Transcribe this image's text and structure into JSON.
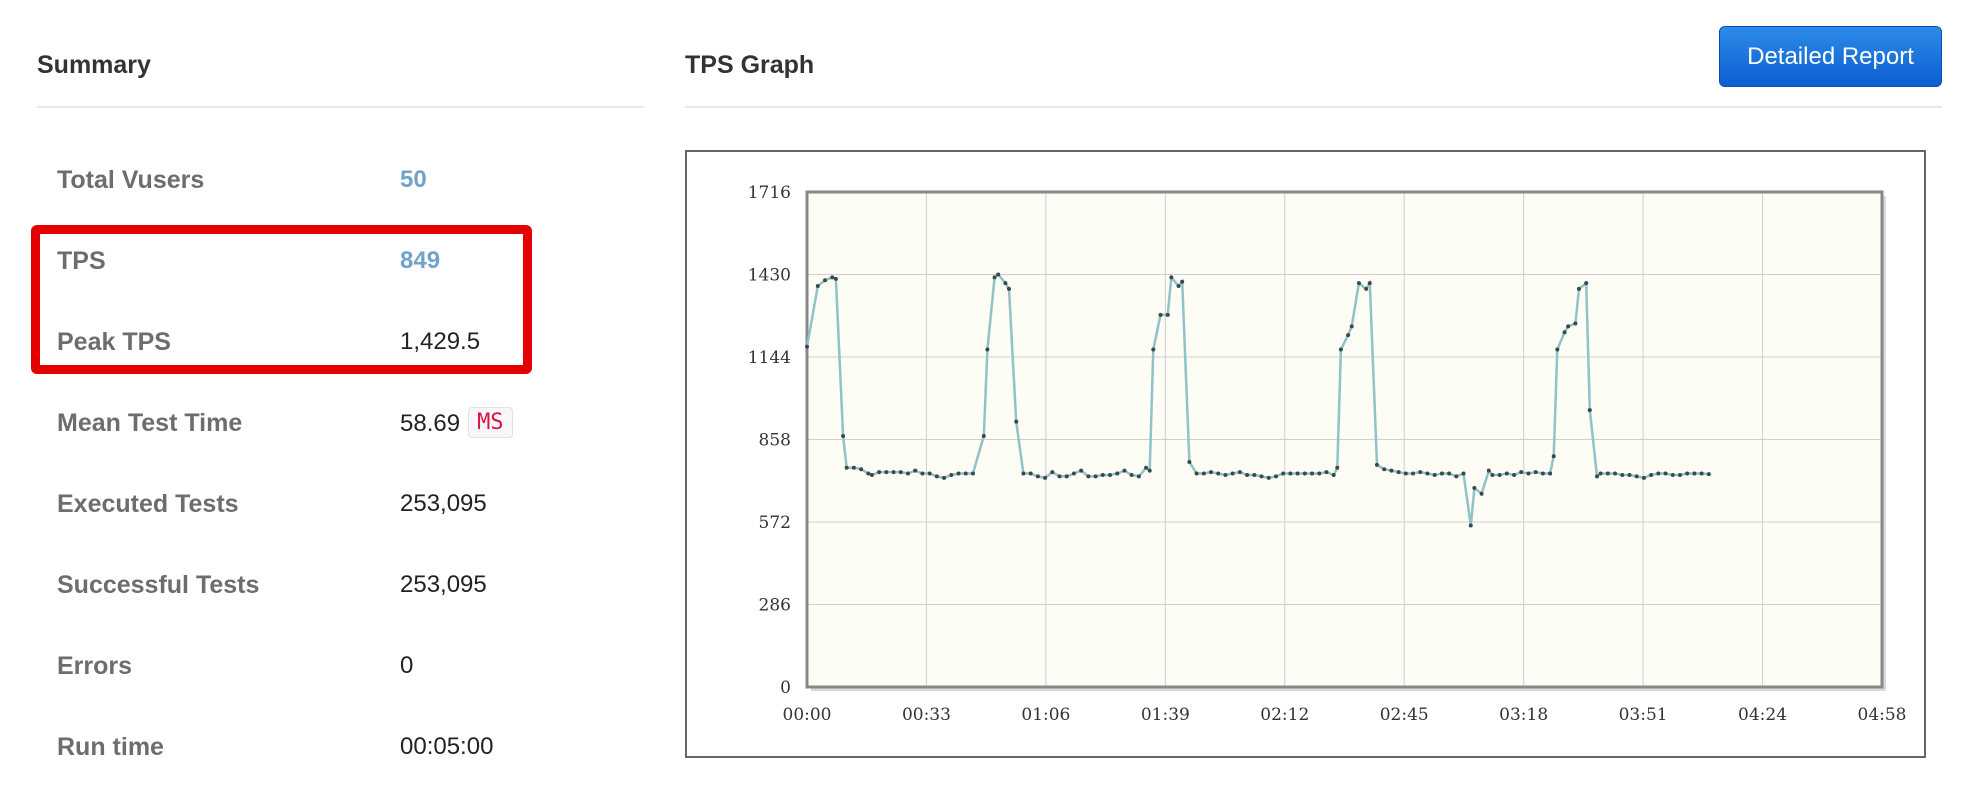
{
  "summary": {
    "title": "Summary",
    "rows": [
      {
        "label": "Total Vusers",
        "value": "50"
      },
      {
        "label": "TPS",
        "value": "849"
      },
      {
        "label": "Peak TPS",
        "value": "1,429.5"
      },
      {
        "label": "Mean Test Time",
        "value": "58.69",
        "unit": "MS"
      },
      {
        "label": "Executed Tests",
        "value": "253,095"
      },
      {
        "label": "Successful Tests",
        "value": "253,095"
      },
      {
        "label": "Errors",
        "value": "0"
      },
      {
        "label": "Run time",
        "value": "00:05:00"
      }
    ]
  },
  "graph": {
    "title": "TPS Graph",
    "detailed_report_label": "Detailed Report"
  },
  "colors": {
    "highlight": "#e50000",
    "button": "#1a6fdc",
    "link_value": "#6fa3c9",
    "line": "#8fc3c9",
    "plot_bg": "#fdfcf5"
  },
  "chart_data": {
    "type": "line",
    "title": "",
    "xlabel": "",
    "ylabel": "",
    "x_ticks": [
      "00:00",
      "00:33",
      "01:06",
      "01:39",
      "02:12",
      "02:45",
      "03:18",
      "03:51",
      "04:24",
      "04:58"
    ],
    "y_ticks": [
      "0",
      "286",
      "572",
      "858",
      "1144",
      "1430",
      "1716"
    ],
    "ylim": [
      0,
      1716
    ],
    "xlim_seconds": [
      0,
      298
    ],
    "grid": true,
    "series": [
      {
        "values": [
          [
            0,
            1180
          ],
          [
            3,
            1390
          ],
          [
            5,
            1410
          ],
          [
            7,
            1420
          ],
          [
            8,
            1415
          ],
          [
            10,
            870
          ],
          [
            11,
            760
          ],
          [
            13,
            760
          ],
          [
            15,
            755
          ],
          [
            17,
            740
          ],
          [
            18,
            735
          ],
          [
            20,
            745
          ],
          [
            22,
            745
          ],
          [
            24,
            745
          ],
          [
            26,
            745
          ],
          [
            28,
            740
          ],
          [
            30,
            750
          ],
          [
            32,
            740
          ],
          [
            34,
            740
          ],
          [
            36,
            730
          ],
          [
            38,
            725
          ],
          [
            40,
            735
          ],
          [
            42,
            740
          ],
          [
            44,
            740
          ],
          [
            46,
            740
          ],
          [
            49,
            870
          ],
          [
            50,
            1170
          ],
          [
            52,
            1420
          ],
          [
            53,
            1430
          ],
          [
            55,
            1400
          ],
          [
            56,
            1380
          ],
          [
            58,
            920
          ],
          [
            60,
            740
          ],
          [
            62,
            740
          ],
          [
            64,
            730
          ],
          [
            66,
            725
          ],
          [
            68,
            745
          ],
          [
            70,
            730
          ],
          [
            72,
            730
          ],
          [
            74,
            740
          ],
          [
            76,
            750
          ],
          [
            78,
            730
          ],
          [
            80,
            730
          ],
          [
            82,
            735
          ],
          [
            84,
            735
          ],
          [
            86,
            740
          ],
          [
            88,
            750
          ],
          [
            90,
            735
          ],
          [
            92,
            730
          ],
          [
            94,
            760
          ],
          [
            95,
            750
          ],
          [
            96,
            1170
          ],
          [
            98,
            1290
          ],
          [
            100,
            1290
          ],
          [
            101,
            1420
          ],
          [
            103,
            1390
          ],
          [
            104,
            1405
          ],
          [
            106,
            780
          ],
          [
            108,
            740
          ],
          [
            110,
            740
          ],
          [
            112,
            745
          ],
          [
            114,
            740
          ],
          [
            116,
            735
          ],
          [
            118,
            740
          ],
          [
            120,
            745
          ],
          [
            122,
            735
          ],
          [
            124,
            735
          ],
          [
            126,
            730
          ],
          [
            128,
            725
          ],
          [
            130,
            730
          ],
          [
            132,
            740
          ],
          [
            134,
            740
          ],
          [
            136,
            740
          ],
          [
            138,
            740
          ],
          [
            140,
            740
          ],
          [
            142,
            740
          ],
          [
            144,
            745
          ],
          [
            146,
            735
          ],
          [
            147,
            760
          ],
          [
            148,
            1170
          ],
          [
            150,
            1220
          ],
          [
            151,
            1250
          ],
          [
            153,
            1400
          ],
          [
            155,
            1380
          ],
          [
            156,
            1400
          ],
          [
            158,
            770
          ],
          [
            160,
            755
          ],
          [
            162,
            750
          ],
          [
            164,
            745
          ],
          [
            166,
            740
          ],
          [
            168,
            740
          ],
          [
            170,
            745
          ],
          [
            172,
            740
          ],
          [
            174,
            735
          ],
          [
            176,
            740
          ],
          [
            178,
            740
          ],
          [
            180,
            730
          ],
          [
            182,
            740
          ],
          [
            184,
            560
          ],
          [
            185,
            690
          ],
          [
            187,
            670
          ],
          [
            189,
            750
          ],
          [
            190,
            735
          ],
          [
            192,
            735
          ],
          [
            194,
            740
          ],
          [
            196,
            735
          ],
          [
            198,
            745
          ],
          [
            200,
            740
          ],
          [
            202,
            745
          ],
          [
            204,
            740
          ],
          [
            206,
            740
          ],
          [
            207,
            800
          ],
          [
            208,
            1170
          ],
          [
            210,
            1230
          ],
          [
            211,
            1250
          ],
          [
            213,
            1260
          ],
          [
            214,
            1380
          ],
          [
            216,
            1400
          ],
          [
            217,
            960
          ],
          [
            219,
            730
          ],
          [
            220,
            740
          ],
          [
            222,
            740
          ],
          [
            224,
            740
          ],
          [
            226,
            735
          ],
          [
            228,
            735
          ],
          [
            230,
            730
          ],
          [
            232,
            725
          ],
          [
            234,
            735
          ],
          [
            236,
            740
          ],
          [
            238,
            740
          ],
          [
            240,
            735
          ],
          [
            242,
            735
          ],
          [
            244,
            740
          ],
          [
            246,
            740
          ],
          [
            248,
            740
          ],
          [
            250,
            738
          ]
        ]
      }
    ]
  }
}
